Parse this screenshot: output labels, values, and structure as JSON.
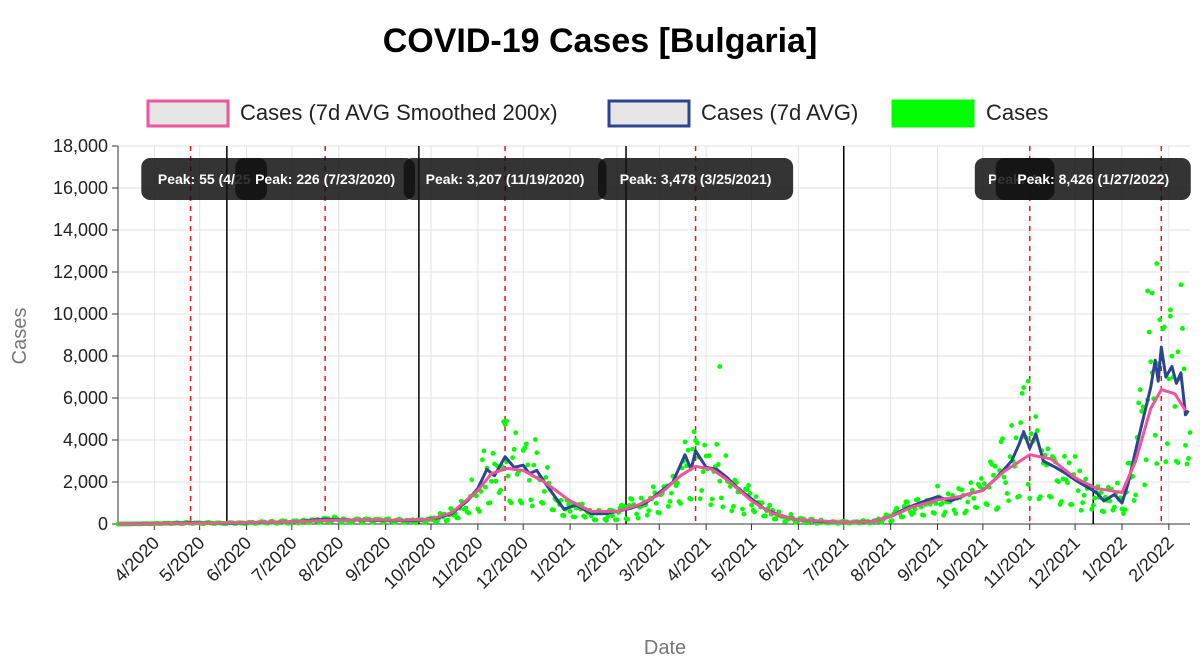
{
  "chart_data": {
    "type": "line",
    "title": "COVID-19 Cases [Bulgaria]",
    "xlabel": "Date",
    "ylabel": "Cases",
    "ylim": [
      0,
      18000
    ],
    "yticks": [
      0,
      2000,
      4000,
      6000,
      8000,
      10000,
      12000,
      14000,
      16000,
      18000
    ],
    "ytick_labels": [
      "0",
      "2,000",
      "4,000",
      "6,000",
      "8,000",
      "10,000",
      "12,000",
      "14,000",
      "16,000",
      "18,000"
    ],
    "xrange": [
      "2020-03-08",
      "2022-02-15"
    ],
    "xtick_dates": [
      "2020-04-01",
      "2020-05-01",
      "2020-06-01",
      "2020-07-01",
      "2020-08-01",
      "2020-09-01",
      "2020-10-01",
      "2020-11-01",
      "2020-12-01",
      "2021-01-01",
      "2021-02-01",
      "2021-03-01",
      "2021-04-01",
      "2021-05-01",
      "2021-06-01",
      "2021-07-01",
      "2021-08-01",
      "2021-09-01",
      "2021-10-01",
      "2021-11-01",
      "2021-12-01",
      "2022-01-01",
      "2022-02-01"
    ],
    "xtick_labels": [
      "4/2020",
      "5/2020",
      "6/2020",
      "7/2020",
      "8/2020",
      "9/2020",
      "10/2020",
      "11/2020",
      "12/2020",
      "1/2021",
      "2/2021",
      "3/2021",
      "4/2021",
      "5/2021",
      "6/2021",
      "7/2021",
      "8/2021",
      "9/2021",
      "10/2021",
      "11/2021",
      "12/2021",
      "1/2022",
      "2/2022"
    ],
    "grid": true,
    "legend_position": "top",
    "wave_boundaries": [
      "2020-05-19",
      "2020-09-23",
      "2021-02-07",
      "2021-07-01",
      "2021-12-13"
    ],
    "peaks": [
      {
        "date": "2020-04-25",
        "label": "Peak: 55 (4/25",
        "label_date": "2020-05-04"
      },
      {
        "date": "2020-07-23",
        "label": "Peak: 226 (7/23/2020)",
        "label_date": "2020-07-23"
      },
      {
        "date": "2020-11-19",
        "label": "Peak: 3,207 (11/19/2020)",
        "label_date": "2020-11-19"
      },
      {
        "date": "2021-03-25",
        "label": "Peak: 3,478 (3/25/2021)",
        "label_date": "2021-03-25"
      },
      {
        "date": "2021-11-01",
        "label": "Peak: 4,",
        "label_date": "2021-10-22"
      },
      {
        "date": "2022-01-27",
        "label": "Peak: 8,426 (1/27/2022)",
        "label_date": "2021-12-13"
      }
    ],
    "series": [
      {
        "name": "Cases (7d AVG Smoothed 200x)",
        "color": "#f0549b",
        "kind": "line",
        "points": [
          [
            "2020-03-08",
            0
          ],
          [
            "2020-04-01",
            20
          ],
          [
            "2020-05-01",
            40
          ],
          [
            "2020-06-01",
            70
          ],
          [
            "2020-07-01",
            110
          ],
          [
            "2020-07-23",
            170
          ],
          [
            "2020-08-15",
            200
          ],
          [
            "2020-09-10",
            180
          ],
          [
            "2020-10-01",
            230
          ],
          [
            "2020-10-15",
            550
          ],
          [
            "2020-11-01",
            1600
          ],
          [
            "2020-11-10",
            2400
          ],
          [
            "2020-11-20",
            2650
          ],
          [
            "2020-12-01",
            2550
          ],
          [
            "2020-12-15",
            2000
          ],
          [
            "2021-01-01",
            1100
          ],
          [
            "2021-01-15",
            600
          ],
          [
            "2021-02-01",
            600
          ],
          [
            "2021-02-15",
            900
          ],
          [
            "2021-03-01",
            1400
          ],
          [
            "2021-03-15",
            2300
          ],
          [
            "2021-03-25",
            2750
          ],
          [
            "2021-04-05",
            2600
          ],
          [
            "2021-04-15",
            2100
          ],
          [
            "2021-05-01",
            1100
          ],
          [
            "2021-05-15",
            500
          ],
          [
            "2021-06-01",
            200
          ],
          [
            "2021-07-01",
            80
          ],
          [
            "2021-07-20",
            120
          ],
          [
            "2021-08-01",
            350
          ],
          [
            "2021-08-15",
            800
          ],
          [
            "2021-09-01",
            1150
          ],
          [
            "2021-09-15",
            1300
          ],
          [
            "2021-10-01",
            1600
          ],
          [
            "2021-10-15",
            2500
          ],
          [
            "2021-11-01",
            3300
          ],
          [
            "2021-11-15",
            3100
          ],
          [
            "2021-12-01",
            2200
          ],
          [
            "2021-12-15",
            1700
          ],
          [
            "2022-01-01",
            1500
          ],
          [
            "2022-01-10",
            3000
          ],
          [
            "2022-01-20",
            5500
          ],
          [
            "2022-01-27",
            6400
          ],
          [
            "2022-02-05",
            6200
          ],
          [
            "2022-02-12",
            5400
          ]
        ]
      },
      {
        "name": "Cases (7d AVG)",
        "color": "#2d4590",
        "kind": "line",
        "points": [
          [
            "2020-03-08",
            0
          ],
          [
            "2020-04-01",
            20
          ],
          [
            "2020-04-25",
            55
          ],
          [
            "2020-05-20",
            40
          ],
          [
            "2020-06-15",
            80
          ],
          [
            "2020-07-01",
            110
          ],
          [
            "2020-07-23",
            226
          ],
          [
            "2020-08-10",
            190
          ],
          [
            "2020-09-01",
            170
          ],
          [
            "2020-09-20",
            160
          ],
          [
            "2020-10-05",
            280
          ],
          [
            "2020-10-15",
            500
          ],
          [
            "2020-10-25",
            1100
          ],
          [
            "2020-11-01",
            1700
          ],
          [
            "2020-11-07",
            2600
          ],
          [
            "2020-11-12",
            2300
          ],
          [
            "2020-11-19",
            3207
          ],
          [
            "2020-11-25",
            2700
          ],
          [
            "2020-12-01",
            2800
          ],
          [
            "2020-12-05",
            2400
          ],
          [
            "2020-12-10",
            2550
          ],
          [
            "2020-12-15",
            2000
          ],
          [
            "2020-12-20",
            1500
          ],
          [
            "2020-12-28",
            700
          ],
          [
            "2021-01-05",
            900
          ],
          [
            "2021-01-15",
            500
          ],
          [
            "2021-01-25",
            500
          ],
          [
            "2021-02-01",
            600
          ],
          [
            "2021-02-10",
            750
          ],
          [
            "2021-02-20",
            1000
          ],
          [
            "2021-03-01",
            1500
          ],
          [
            "2021-03-10",
            2000
          ],
          [
            "2021-03-18",
            3300
          ],
          [
            "2021-03-22",
            2600
          ],
          [
            "2021-03-25",
            3478
          ],
          [
            "2021-04-01",
            2700
          ],
          [
            "2021-04-08",
            2600
          ],
          [
            "2021-04-15",
            2200
          ],
          [
            "2021-04-22",
            1700
          ],
          [
            "2021-05-01",
            1200
          ],
          [
            "2021-05-10",
            700
          ],
          [
            "2021-05-20",
            400
          ],
          [
            "2021-06-01",
            200
          ],
          [
            "2021-06-15",
            120
          ],
          [
            "2021-07-01",
            80
          ],
          [
            "2021-07-20",
            120
          ],
          [
            "2021-08-01",
            350
          ],
          [
            "2021-08-10",
            700
          ],
          [
            "2021-08-20",
            1000
          ],
          [
            "2021-09-01",
            1300
          ],
          [
            "2021-09-10",
            1100
          ],
          [
            "2021-09-20",
            1400
          ],
          [
            "2021-10-01",
            1600
          ],
          [
            "2021-10-10",
            2200
          ],
          [
            "2021-10-20",
            3000
          ],
          [
            "2021-10-25",
            3800
          ],
          [
            "2021-10-28",
            4400
          ],
          [
            "2021-11-01",
            3600
          ],
          [
            "2021-11-05",
            4300
          ],
          [
            "2021-11-10",
            3000
          ],
          [
            "2021-11-18",
            2700
          ],
          [
            "2021-11-25",
            2400
          ],
          [
            "2021-12-01",
            2100
          ],
          [
            "2021-12-08",
            1800
          ],
          [
            "2021-12-15",
            1500
          ],
          [
            "2021-12-20",
            1100
          ],
          [
            "2021-12-27",
            1400
          ],
          [
            "2022-01-01",
            1000
          ],
          [
            "2022-01-05",
            1900
          ],
          [
            "2022-01-10",
            3500
          ],
          [
            "2022-01-15",
            5000
          ],
          [
            "2022-01-20",
            6500
          ],
          [
            "2022-01-23",
            7800
          ],
          [
            "2022-01-25",
            6800
          ],
          [
            "2022-01-27",
            8426
          ],
          [
            "2022-01-30",
            7000
          ],
          [
            "2022-02-03",
            7500
          ],
          [
            "2022-02-06",
            6700
          ],
          [
            "2022-02-09",
            7200
          ],
          [
            "2022-02-12",
            5200
          ],
          [
            "2022-02-14",
            5400
          ]
        ]
      },
      {
        "name": "Cases",
        "color": "#00ff00",
        "kind": "scatter",
        "note_generation": "daily points derived from the 7-day average with deterministic scatter",
        "extra_points": [
          [
            "2021-04-10",
            7500
          ],
          [
            "2022-01-24",
            12400
          ],
          [
            "2022-01-18",
            11100
          ],
          [
            "2022-01-21",
            11000
          ],
          [
            "2022-02-02",
            10200
          ],
          [
            "2022-02-07",
            8200
          ],
          [
            "2021-10-31",
            6800
          ],
          [
            "2020-11-20",
            4900
          ]
        ]
      }
    ],
    "legend": [
      {
        "label": "Cases (7d AVG Smoothed 200x)",
        "color": "#f0549b",
        "fill": "#e6e6e6"
      },
      {
        "label": "Cases (7d AVG)",
        "color": "#2d4590",
        "fill": "#e6e6e6"
      },
      {
        "label": "Cases",
        "color": "#00ff00",
        "fill": "#00ff00"
      }
    ]
  }
}
